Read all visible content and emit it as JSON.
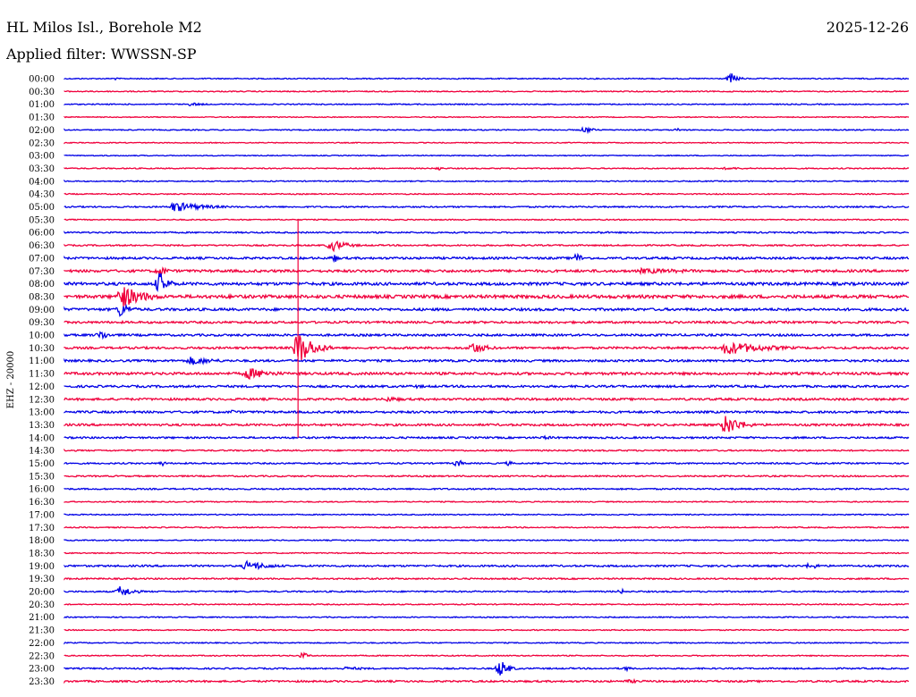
{
  "header": {
    "station": "HL Milos Isl., Borehole M2",
    "date": "2025-12-26",
    "filter": "Applied filter: WWSSN-SP"
  },
  "colors": {
    "trace_a": "#0000e6",
    "trace_b": "#f0003c"
  },
  "chart_data": {
    "type": "line",
    "title": "HL Milos Isl., Borehole M2",
    "ylabel": "EHZ - 20000",
    "xlabel": "",
    "grid": false,
    "legend": "none",
    "tick_labels": [
      "00:00",
      "00:30",
      "01:00",
      "01:30",
      "02:00",
      "02:30",
      "03:00",
      "03:30",
      "04:00",
      "04:30",
      "05:00",
      "05:30",
      "06:00",
      "06:30",
      "07:00",
      "07:30",
      "08:00",
      "08:30",
      "09:00",
      "09:30",
      "10:00",
      "10:30",
      "11:00",
      "11:30",
      "12:00",
      "12:30",
      "13:00",
      "13:30",
      "14:00",
      "14:30",
      "15:00",
      "15:30",
      "16:00",
      "16:30",
      "17:00",
      "17:30",
      "18:00",
      "18:30",
      "19:00",
      "19:30",
      "20:00",
      "20:30",
      "21:00",
      "21:30",
      "22:00",
      "22:30",
      "23:00",
      "23:30"
    ],
    "x_range_minutes": [
      0,
      30
    ],
    "noise_levels": [
      0.6,
      0.6,
      0.6,
      0.5,
      0.6,
      0.5,
      0.5,
      0.6,
      0.6,
      0.6,
      0.8,
      0.6,
      0.8,
      0.8,
      1.2,
      1.4,
      1.6,
      1.8,
      1.4,
      1.2,
      1.2,
      1.2,
      1.2,
      1.4,
      1.2,
      1.2,
      1.2,
      1.2,
      1.0,
      0.8,
      0.8,
      0.8,
      0.8,
      0.6,
      0.6,
      0.6,
      0.6,
      0.6,
      1.0,
      0.8,
      0.8,
      0.6,
      0.6,
      0.6,
      0.6,
      0.6,
      0.8,
      1.0
    ],
    "events": [
      {
        "row": 0,
        "minute": 1.8,
        "amplitude": 1.5,
        "duration": 0.4
      },
      {
        "row": 0,
        "minute": 23.7,
        "amplitude": 6,
        "duration": 0.7
      },
      {
        "row": 2,
        "minute": 4.5,
        "amplitude": 2,
        "duration": 1.5
      },
      {
        "row": 4,
        "minute": 18.5,
        "amplitude": 4,
        "duration": 0.8
      },
      {
        "row": 4,
        "minute": 21.8,
        "amplitude": 2,
        "duration": 0.4
      },
      {
        "row": 7,
        "minute": 13.3,
        "amplitude": 2.5,
        "duration": 0.4
      },
      {
        "row": 7,
        "minute": 23.5,
        "amplitude": 1.5,
        "duration": 3
      },
      {
        "row": 10,
        "minute": 3.9,
        "amplitude": 6,
        "duration": 3
      },
      {
        "row": 12,
        "minute": 19,
        "amplitude": 1.5,
        "duration": 2
      },
      {
        "row": 13,
        "minute": 9.5,
        "amplitude": 7,
        "duration": 1.5
      },
      {
        "row": 14,
        "minute": 9.6,
        "amplitude": 5,
        "duration": 0.4
      },
      {
        "row": 14,
        "minute": 18.2,
        "amplitude": 6,
        "duration": 0.7
      },
      {
        "row": 15,
        "minute": 3.4,
        "amplitude": 7,
        "duration": 0.7
      },
      {
        "row": 15,
        "minute": 20.5,
        "amplitude": 3,
        "duration": 8
      },
      {
        "row": 16,
        "minute": 3.4,
        "amplitude": 14,
        "duration": 0.8
      },
      {
        "row": 17,
        "minute": 2,
        "amplitude": 14,
        "duration": 2.2
      },
      {
        "row": 17,
        "minute": 5.9,
        "amplitude": 3,
        "duration": 0.5
      },
      {
        "row": 18,
        "minute": 2,
        "amplitude": 9,
        "duration": 1
      },
      {
        "row": 20,
        "minute": 1.3,
        "amplitude": 6,
        "duration": 0.8
      },
      {
        "row": 21,
        "minute": 8.3,
        "amplitude": 20,
        "duration": 1.5
      },
      {
        "row": 21,
        "minute": 14.5,
        "amplitude": 7,
        "duration": 1.5
      },
      {
        "row": 21,
        "minute": 23.5,
        "amplitude": 8,
        "duration": 4
      },
      {
        "row": 22,
        "minute": 4.5,
        "amplitude": 5,
        "duration": 2.5
      },
      {
        "row": 23,
        "minute": 6.5,
        "amplitude": 7,
        "duration": 2.5
      },
      {
        "row": 24,
        "minute": 12.5,
        "amplitude": 2,
        "duration": 1.5
      },
      {
        "row": 25,
        "minute": 11.5,
        "amplitude": 3,
        "duration": 2
      },
      {
        "row": 26,
        "minute": 6,
        "amplitude": 3,
        "duration": 0.4
      },
      {
        "row": 27,
        "minute": 23.5,
        "amplitude": 12,
        "duration": 1.5
      },
      {
        "row": 28,
        "minute": 17,
        "amplitude": 2,
        "duration": 2.5
      },
      {
        "row": 30,
        "minute": 3.5,
        "amplitude": 3,
        "duration": 0.4
      },
      {
        "row": 30,
        "minute": 14,
        "amplitude": 5,
        "duration": 0.4
      },
      {
        "row": 30,
        "minute": 15.8,
        "amplitude": 3,
        "duration": 0.4
      },
      {
        "row": 38,
        "minute": 6.5,
        "amplitude": 6,
        "duration": 2.2
      },
      {
        "row": 38,
        "minute": 26.5,
        "amplitude": 4,
        "duration": 1
      },
      {
        "row": 40,
        "minute": 2,
        "amplitude": 7,
        "duration": 1.2
      },
      {
        "row": 40,
        "minute": 19.8,
        "amplitude": 3,
        "duration": 0.4
      },
      {
        "row": 45,
        "minute": 8.5,
        "amplitude": 4,
        "duration": 0.5
      },
      {
        "row": 46,
        "minute": 15.5,
        "amplitude": 10,
        "duration": 0.8
      },
      {
        "row": 46,
        "minute": 20,
        "amplitude": 3,
        "duration": 0.4
      },
      {
        "row": 46,
        "minute": 10,
        "amplitude": 2,
        "duration": 3
      },
      {
        "row": 47,
        "minute": 20,
        "amplitude": 2,
        "duration": 3
      }
    ],
    "spike": {
      "row": 21,
      "minute": 8.3,
      "extent_rows": [
        -10,
        7
      ]
    }
  }
}
